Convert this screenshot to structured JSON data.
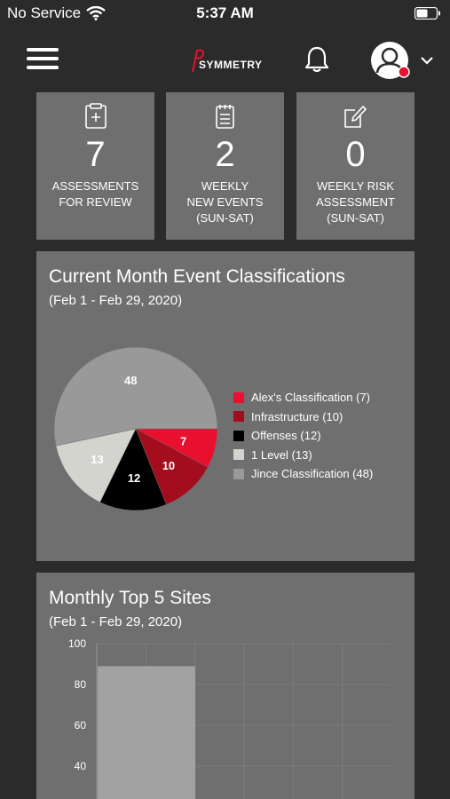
{
  "status": {
    "carrier": "No Service",
    "time": "5:37 AM"
  },
  "header": {
    "logo_text": "SYMMETRY"
  },
  "tiles": [
    {
      "icon": "clipboard-plus-icon",
      "value": "7",
      "label": "ASSESSMENTS\nFOR REVIEW"
    },
    {
      "icon": "calendar-list-icon",
      "value": "2",
      "label": "WEEKLY\nNEW EVENTS\n(SUN-SAT)"
    },
    {
      "icon": "edit-icon",
      "value": "0",
      "label": "WEEKLY RISK\nASSESSMENT\n(SUN-SAT)"
    }
  ],
  "pie_card": {
    "title": "Current Month Event Classifications",
    "subtitle": "(Feb 1 - Feb 29, 2020)"
  },
  "bar_card": {
    "title": "Monthly Top 5 Sites",
    "subtitle": "(Feb 1 - Feb 29, 2020)"
  },
  "colors": {
    "accent_red": "#e8102e",
    "dark_red": "#a30d1d",
    "black": "#000000",
    "light_gray": "#d4d4ce",
    "mid_gray": "#999999",
    "card_bg": "#6f6f6f",
    "page_bg": "#2b2b2b"
  },
  "chart_data": [
    {
      "type": "pie",
      "slices": [
        {
          "label": "Alex's Classification (7)",
          "value": 7,
          "color": "#e8102e"
        },
        {
          "label": "Infrastructure (10)",
          "value": 10,
          "color": "#a30d1d"
        },
        {
          "label": "Offenses (12)",
          "value": 12,
          "color": "#000000"
        },
        {
          "label": "1 Level (13)",
          "value": 13,
          "color": "#d4d4ce"
        },
        {
          "label": "Jince Classification (48)",
          "value": 48,
          "color": "#999999"
        }
      ],
      "legend": "right"
    },
    {
      "type": "bar",
      "categories": [
        ""
      ],
      "values": [
        89
      ],
      "ylim": [
        0,
        100
      ],
      "yticks": [
        40,
        60,
        80,
        100
      ],
      "grid": true
    }
  ]
}
